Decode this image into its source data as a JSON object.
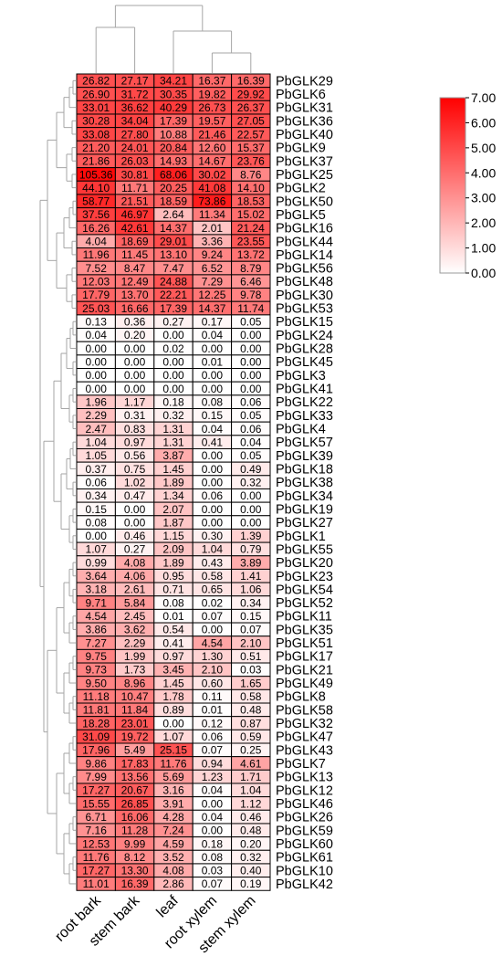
{
  "chart_data": {
    "type": "heatmap",
    "columns": [
      "root bark",
      "stem bark",
      "leaf",
      "root xylem",
      "stem xylem"
    ],
    "rows": [
      {
        "label": "PbGLK29",
        "values": [
          "26.82",
          "27.17",
          "34.21",
          "16.37",
          "16.39"
        ]
      },
      {
        "label": "PbGLK6",
        "values": [
          "26.90",
          "31.72",
          "30.35",
          "19.82",
          "29.92"
        ]
      },
      {
        "label": "PbGLK31",
        "values": [
          "33.01",
          "36.62",
          "40.29",
          "26.73",
          "26.37"
        ]
      },
      {
        "label": "PbGLK36",
        "values": [
          "30.28",
          "34.04",
          "17.39",
          "19.57",
          "27.05"
        ]
      },
      {
        "label": "PbGLK40",
        "values": [
          "33.08",
          "27.80",
          "10.88",
          "21.46",
          "22.57"
        ]
      },
      {
        "label": "PbGLK9",
        "values": [
          "21.20",
          "24.01",
          "20.84",
          "12.60",
          "15.37"
        ]
      },
      {
        "label": "PbGLK37",
        "values": [
          "21.86",
          "26.03",
          "14.93",
          "14.67",
          "23.76"
        ]
      },
      {
        "label": "PbGLK25",
        "values": [
          "105.36",
          "30.81",
          "68.06",
          "30.02",
          "8.76"
        ]
      },
      {
        "label": "PbGLK2",
        "values": [
          "44.10",
          "11.71",
          "20.25",
          "41.08",
          "14.10"
        ]
      },
      {
        "label": "PbGLK50",
        "values": [
          "58.77",
          "21.51",
          "18.59",
          "73.86",
          "18.53"
        ]
      },
      {
        "label": "PbGLK5",
        "values": [
          "37.56",
          "46.97",
          "2.64",
          "11.34",
          "15.02"
        ]
      },
      {
        "label": "PbGLK16",
        "values": [
          "16.26",
          "42.61",
          "14.37",
          "2.01",
          "21.24"
        ]
      },
      {
        "label": "PbGLK44",
        "values": [
          "4.04",
          "18.69",
          "29.01",
          "3.36",
          "23.55"
        ]
      },
      {
        "label": "PbGLK14",
        "values": [
          "11.96",
          "11.45",
          "13.10",
          "9.24",
          "13.72"
        ]
      },
      {
        "label": "PbGLK56",
        "values": [
          "7.52",
          "8.47",
          "7.47",
          "6.52",
          "8.79"
        ]
      },
      {
        "label": "PbGLK48",
        "values": [
          "12.03",
          "12.49",
          "24.88",
          "7.29",
          "6.46"
        ]
      },
      {
        "label": "PbGLK30",
        "values": [
          "17.79",
          "13.70",
          "22.21",
          "12.25",
          "9.78"
        ]
      },
      {
        "label": "PbGLK53",
        "values": [
          "25.03",
          "16.66",
          "17.39",
          "14.37",
          "11.74"
        ]
      },
      {
        "label": "PbGLK15",
        "values": [
          "0.13",
          "0.36",
          "0.27",
          "0.17",
          "0.05"
        ]
      },
      {
        "label": "PbGLK24",
        "values": [
          "0.04",
          "0.20",
          "0.00",
          "0.04",
          "0.00"
        ]
      },
      {
        "label": "PbGLK28",
        "values": [
          "0.00",
          "0.00",
          "0.02",
          "0.00",
          "0.00"
        ]
      },
      {
        "label": "PbGLK45",
        "values": [
          "0.00",
          "0.00",
          "0.00",
          "0.01",
          "0.00"
        ]
      },
      {
        "label": "PbGLK3",
        "values": [
          "0.00",
          "0.00",
          "0.00",
          "0.00",
          "0.00"
        ]
      },
      {
        "label": "PbGLK41",
        "values": [
          "0.00",
          "0.00",
          "0.00",
          "0.00",
          "0.00"
        ]
      },
      {
        "label": "PbGLK22",
        "values": [
          "1.96",
          "1.17",
          "0.18",
          "0.08",
          "0.06"
        ]
      },
      {
        "label": "PbGLK33",
        "values": [
          "2.29",
          "0.31",
          "0.32",
          "0.15",
          "0.05"
        ]
      },
      {
        "label": "PbGLK4",
        "values": [
          "2.47",
          "0.83",
          "1.31",
          "0.04",
          "0.06"
        ]
      },
      {
        "label": "PbGLK57",
        "values": [
          "1.04",
          "0.97",
          "1.31",
          "0.41",
          "0.04"
        ]
      },
      {
        "label": "PbGLK39",
        "values": [
          "1.05",
          "0.56",
          "3.87",
          "0.00",
          "0.05"
        ]
      },
      {
        "label": "PbGLK18",
        "values": [
          "0.37",
          "0.75",
          "1.45",
          "0.00",
          "0.49"
        ]
      },
      {
        "label": "PbGLK38",
        "values": [
          "0.06",
          "1.02",
          "1.89",
          "0.00",
          "0.32"
        ]
      },
      {
        "label": "PbGLK34",
        "values": [
          "0.34",
          "0.47",
          "1.34",
          "0.06",
          "0.00"
        ]
      },
      {
        "label": "PbGLK19",
        "values": [
          "0.15",
          "0.00",
          "2.07",
          "0.00",
          "0.00"
        ]
      },
      {
        "label": "PbGLK27",
        "values": [
          "0.08",
          "0.00",
          "1.87",
          "0.00",
          "0.00"
        ]
      },
      {
        "label": "PbGLK1",
        "values": [
          "0.00",
          "0.46",
          "1.15",
          "0.30",
          "1.39"
        ]
      },
      {
        "label": "PbGLK55",
        "values": [
          "1.07",
          "0.27",
          "2.09",
          "1.04",
          "0.79"
        ]
      },
      {
        "label": "PbGLK20",
        "values": [
          "0.99",
          "4.08",
          "1.89",
          "0.43",
          "3.89"
        ]
      },
      {
        "label": "PbGLK23",
        "values": [
          "3.64",
          "4.06",
          "0.95",
          "0.58",
          "1.41"
        ]
      },
      {
        "label": "PbGLK54",
        "values": [
          "3.18",
          "2.61",
          "0.71",
          "0.65",
          "1.06"
        ]
      },
      {
        "label": "PbGLK52",
        "values": [
          "9.71",
          "5.84",
          "0.08",
          "0.02",
          "0.34"
        ]
      },
      {
        "label": "PbGLK11",
        "values": [
          "4.54",
          "2.45",
          "0.01",
          "0.07",
          "0.15"
        ]
      },
      {
        "label": "PbGLK35",
        "values": [
          "3.86",
          "3.62",
          "0.54",
          "0.00",
          "0.07"
        ]
      },
      {
        "label": "PbGLK51",
        "values": [
          "7.27",
          "2.29",
          "0.41",
          "4.54",
          "2.10"
        ]
      },
      {
        "label": "PbGLK17",
        "values": [
          "9.75",
          "1.99",
          "0.97",
          "1.30",
          "0.51"
        ]
      },
      {
        "label": "PbGLK21",
        "values": [
          "9.73",
          "1.73",
          "3.45",
          "2.10",
          "0.03"
        ]
      },
      {
        "label": "PbGLK49",
        "values": [
          "9.50",
          "8.96",
          "1.45",
          "0.60",
          "1.65"
        ]
      },
      {
        "label": "PbGLK8",
        "values": [
          "11.18",
          "10.47",
          "1.78",
          "0.11",
          "0.58"
        ]
      },
      {
        "label": "PbGLK58",
        "values": [
          "11.81",
          "11.84",
          "0.89",
          "0.01",
          "0.48"
        ]
      },
      {
        "label": "PbGLK32",
        "values": [
          "18.28",
          "23.01",
          "0.00",
          "0.12",
          "0.87"
        ]
      },
      {
        "label": "PbGLK47",
        "values": [
          "31.09",
          "19.72",
          "1.07",
          "0.06",
          "0.59"
        ]
      },
      {
        "label": "PbGLK43",
        "values": [
          "17.96",
          "5.49",
          "25.15",
          "0.07",
          "0.25"
        ]
      },
      {
        "label": "PbGLK7",
        "values": [
          "9.86",
          "17.83",
          "11.76",
          "0.94",
          "4.61"
        ]
      },
      {
        "label": "PbGLK13",
        "values": [
          "7.99",
          "13.56",
          "5.69",
          "1.23",
          "1.71"
        ]
      },
      {
        "label": "PbGLK12",
        "values": [
          "17.27",
          "20.67",
          "3.16",
          "0.04",
          "1.04"
        ]
      },
      {
        "label": "PbGLK46",
        "values": [
          "15.55",
          "26.85",
          "3.91",
          "0.00",
          "1.12"
        ]
      },
      {
        "label": "PbGLK26",
        "values": [
          "6.71",
          "16.06",
          "4.28",
          "0.04",
          "0.46"
        ]
      },
      {
        "label": "PbGLK59",
        "values": [
          "7.16",
          "11.28",
          "7.24",
          "0.00",
          "0.48"
        ]
      },
      {
        "label": "PbGLK60",
        "values": [
          "12.53",
          "9.99",
          "4.59",
          "0.18",
          "0.20"
        ]
      },
      {
        "label": "PbGLK61",
        "values": [
          "11.76",
          "8.12",
          "3.52",
          "0.08",
          "0.32"
        ]
      },
      {
        "label": "PbGLK10",
        "values": [
          "17.27",
          "13.30",
          "4.08",
          "0.03",
          "0.40"
        ]
      },
      {
        "label": "PbGLK42",
        "values": [
          "11.01",
          "16.39",
          "2.86",
          "0.07",
          "0.19"
        ]
      }
    ],
    "color_scale": {
      "transform": "log2(value + 1)",
      "min": 0,
      "max": 7,
      "low_color": "#ffffff",
      "high_color": "#ff0000",
      "tick_labels": [
        "0.00",
        "1.00",
        "2.00",
        "3.00",
        "4.00",
        "5.00",
        "6.00",
        "7.00"
      ]
    },
    "colorbar_placement": "top-right",
    "row_dendrogram": true,
    "column_dendrogram": true
  }
}
